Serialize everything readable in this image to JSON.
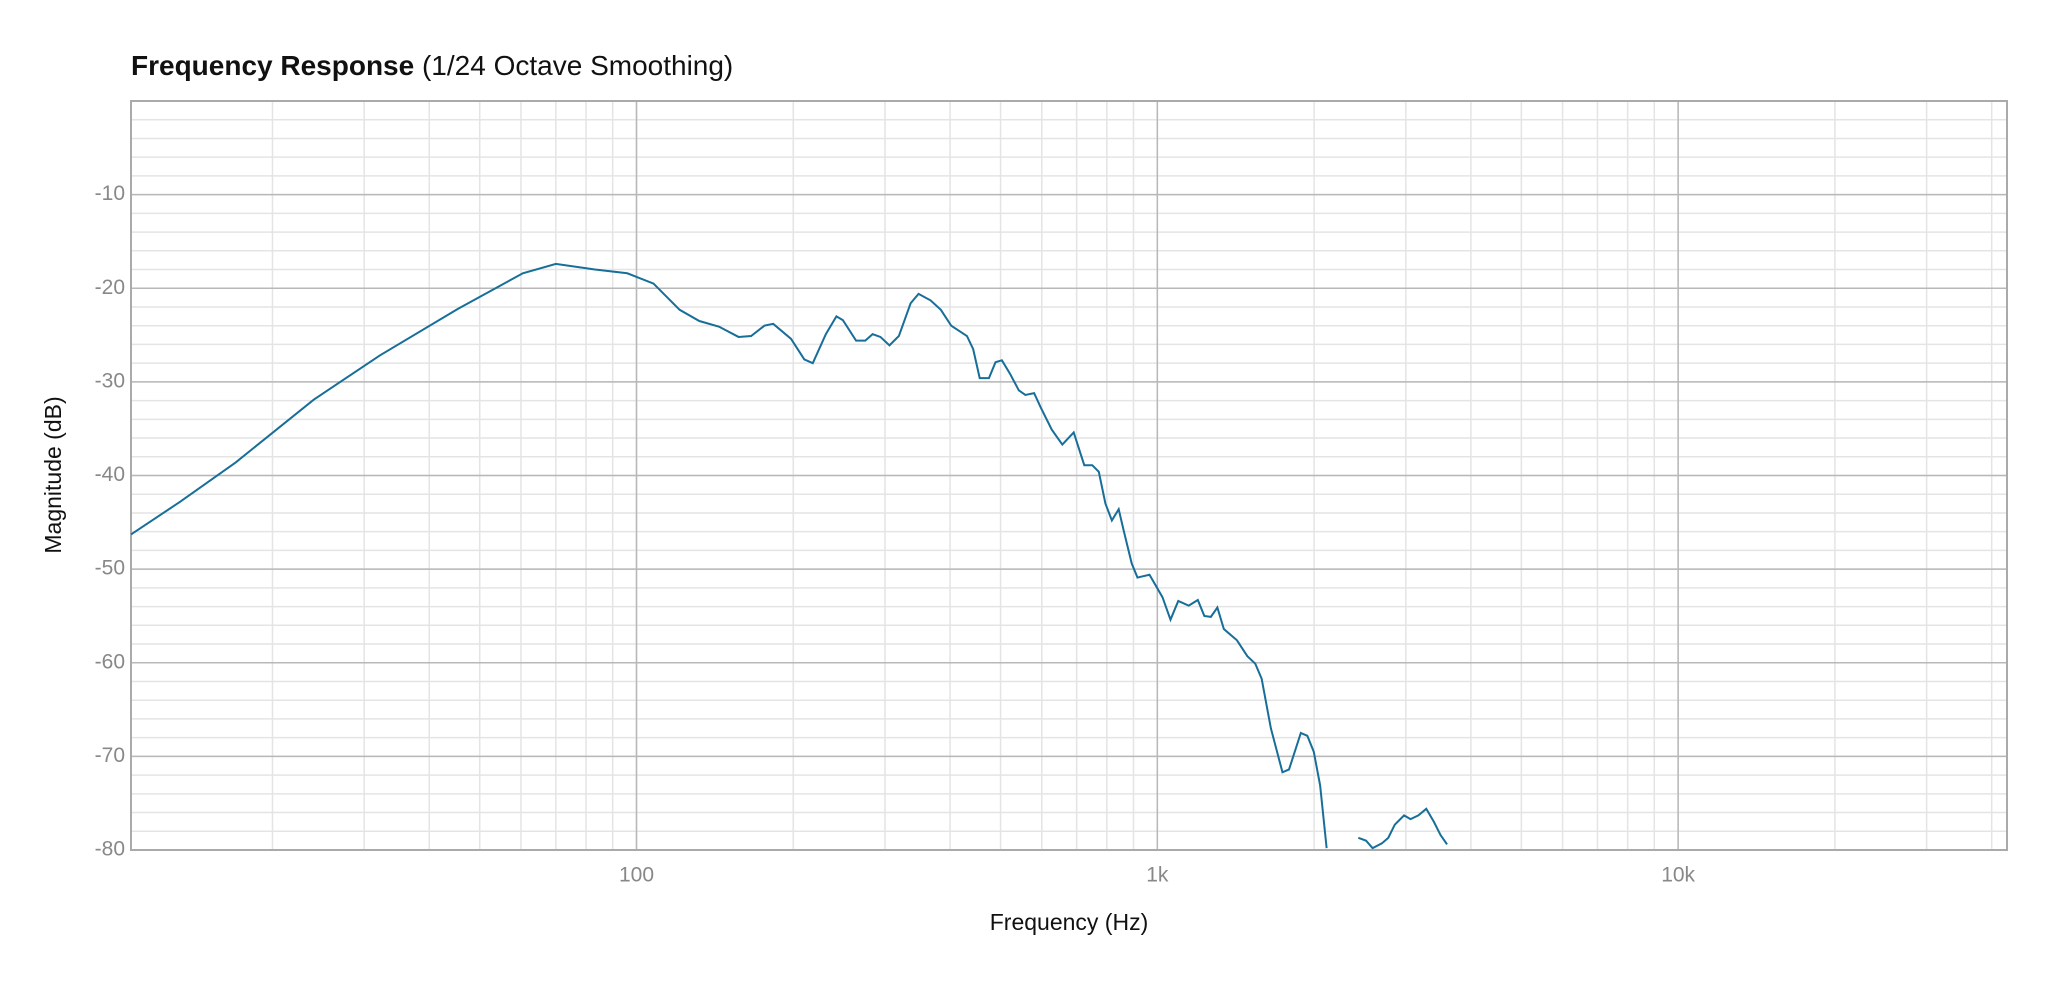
{
  "chart_data": {
    "type": "line",
    "title": "Frequency Response",
    "subtitle": "(1/24 Octave Smoothing)",
    "x_label": "Frequency (Hz)",
    "y_label": "Magnitude (dB)",
    "x_scale": "log",
    "grid": true,
    "minor_grid": true,
    "color": "#176e99",
    "xlim": [
      10.7,
      42800
    ],
    "ylim": [
      -80,
      0
    ],
    "xticks": [
      100,
      {
        "value": 1000,
        "label": "1k"
      },
      {
        "value": 10000,
        "label": "10k"
      }
    ],
    "yticks": [
      -80,
      -70,
      -60,
      -50,
      -40,
      -30,
      -20,
      -10
    ],
    "x": [
      10.7,
      13.3,
      17.0,
      24.0,
      32.1,
      45.4,
      60.5,
      70.0,
      83.2,
      96.0,
      107.8,
      121,
      132,
      144,
      157,
      166,
      176,
      183,
      198,
      210,
      218,
      231,
      242,
      249,
      264,
      275,
      284,
      294,
      306,
      319,
      336,
      348,
      367,
      384,
      402,
      431,
      443,
      456,
      475,
      489,
      503,
      521,
      542,
      558,
      580,
      598,
      627,
      657,
      691,
      724,
      750,
      772,
      795,
      818,
      843,
      862,
      893,
      916,
      966,
      1023,
      1060,
      1097,
      1149,
      1196,
      1231,
      1267,
      1304,
      1342,
      1422,
      1489,
      1542,
      1586,
      1652,
      1739,
      1790,
      1886,
      1941,
      1997,
      2054,
      2114,
      null,
      2432,
      2516,
      2590,
      2697,
      2776,
      2857,
      2977,
      3063,
      3171,
      3284,
      3397,
      3498,
      3600
    ],
    "values": [
      -46.3,
      -42.8,
      -38.6,
      -31.9,
      -27.2,
      -22.2,
      -18.4,
      -17.4,
      -18.0,
      -18.4,
      -19.5,
      -22.3,
      -23.5,
      -24.1,
      -25.2,
      -25.1,
      -24.0,
      -23.8,
      -25.4,
      -27.6,
      -28.0,
      -24.9,
      -23.0,
      -23.4,
      -25.6,
      -25.6,
      -24.9,
      -25.2,
      -26.1,
      -25.1,
      -21.6,
      -20.6,
      -21.3,
      -22.3,
      -24.0,
      -25.1,
      -26.5,
      -29.6,
      -29.6,
      -27.9,
      -27.7,
      -29.1,
      -30.9,
      -31.4,
      -31.2,
      -32.8,
      -35.1,
      -36.7,
      -35.4,
      -38.9,
      -38.9,
      -39.6,
      -43.0,
      -44.8,
      -43.6,
      -45.9,
      -49.4,
      -50.9,
      -50.6,
      -53.0,
      -55.4,
      -53.4,
      -53.9,
      -53.3,
      -55.0,
      -55.1,
      -54.1,
      -56.4,
      -57.6,
      -59.3,
      -60.1,
      -61.7,
      -67.0,
      -71.7,
      -71.4,
      -67.5,
      -67.8,
      -69.5,
      -73.1,
      -79.8,
      null,
      -78.7,
      -79.0,
      -79.8,
      -79.3,
      -78.7,
      -77.3,
      -76.3,
      -76.7,
      -76.3,
      -75.6,
      -77.0,
      -78.4,
      -79.4
    ]
  }
}
